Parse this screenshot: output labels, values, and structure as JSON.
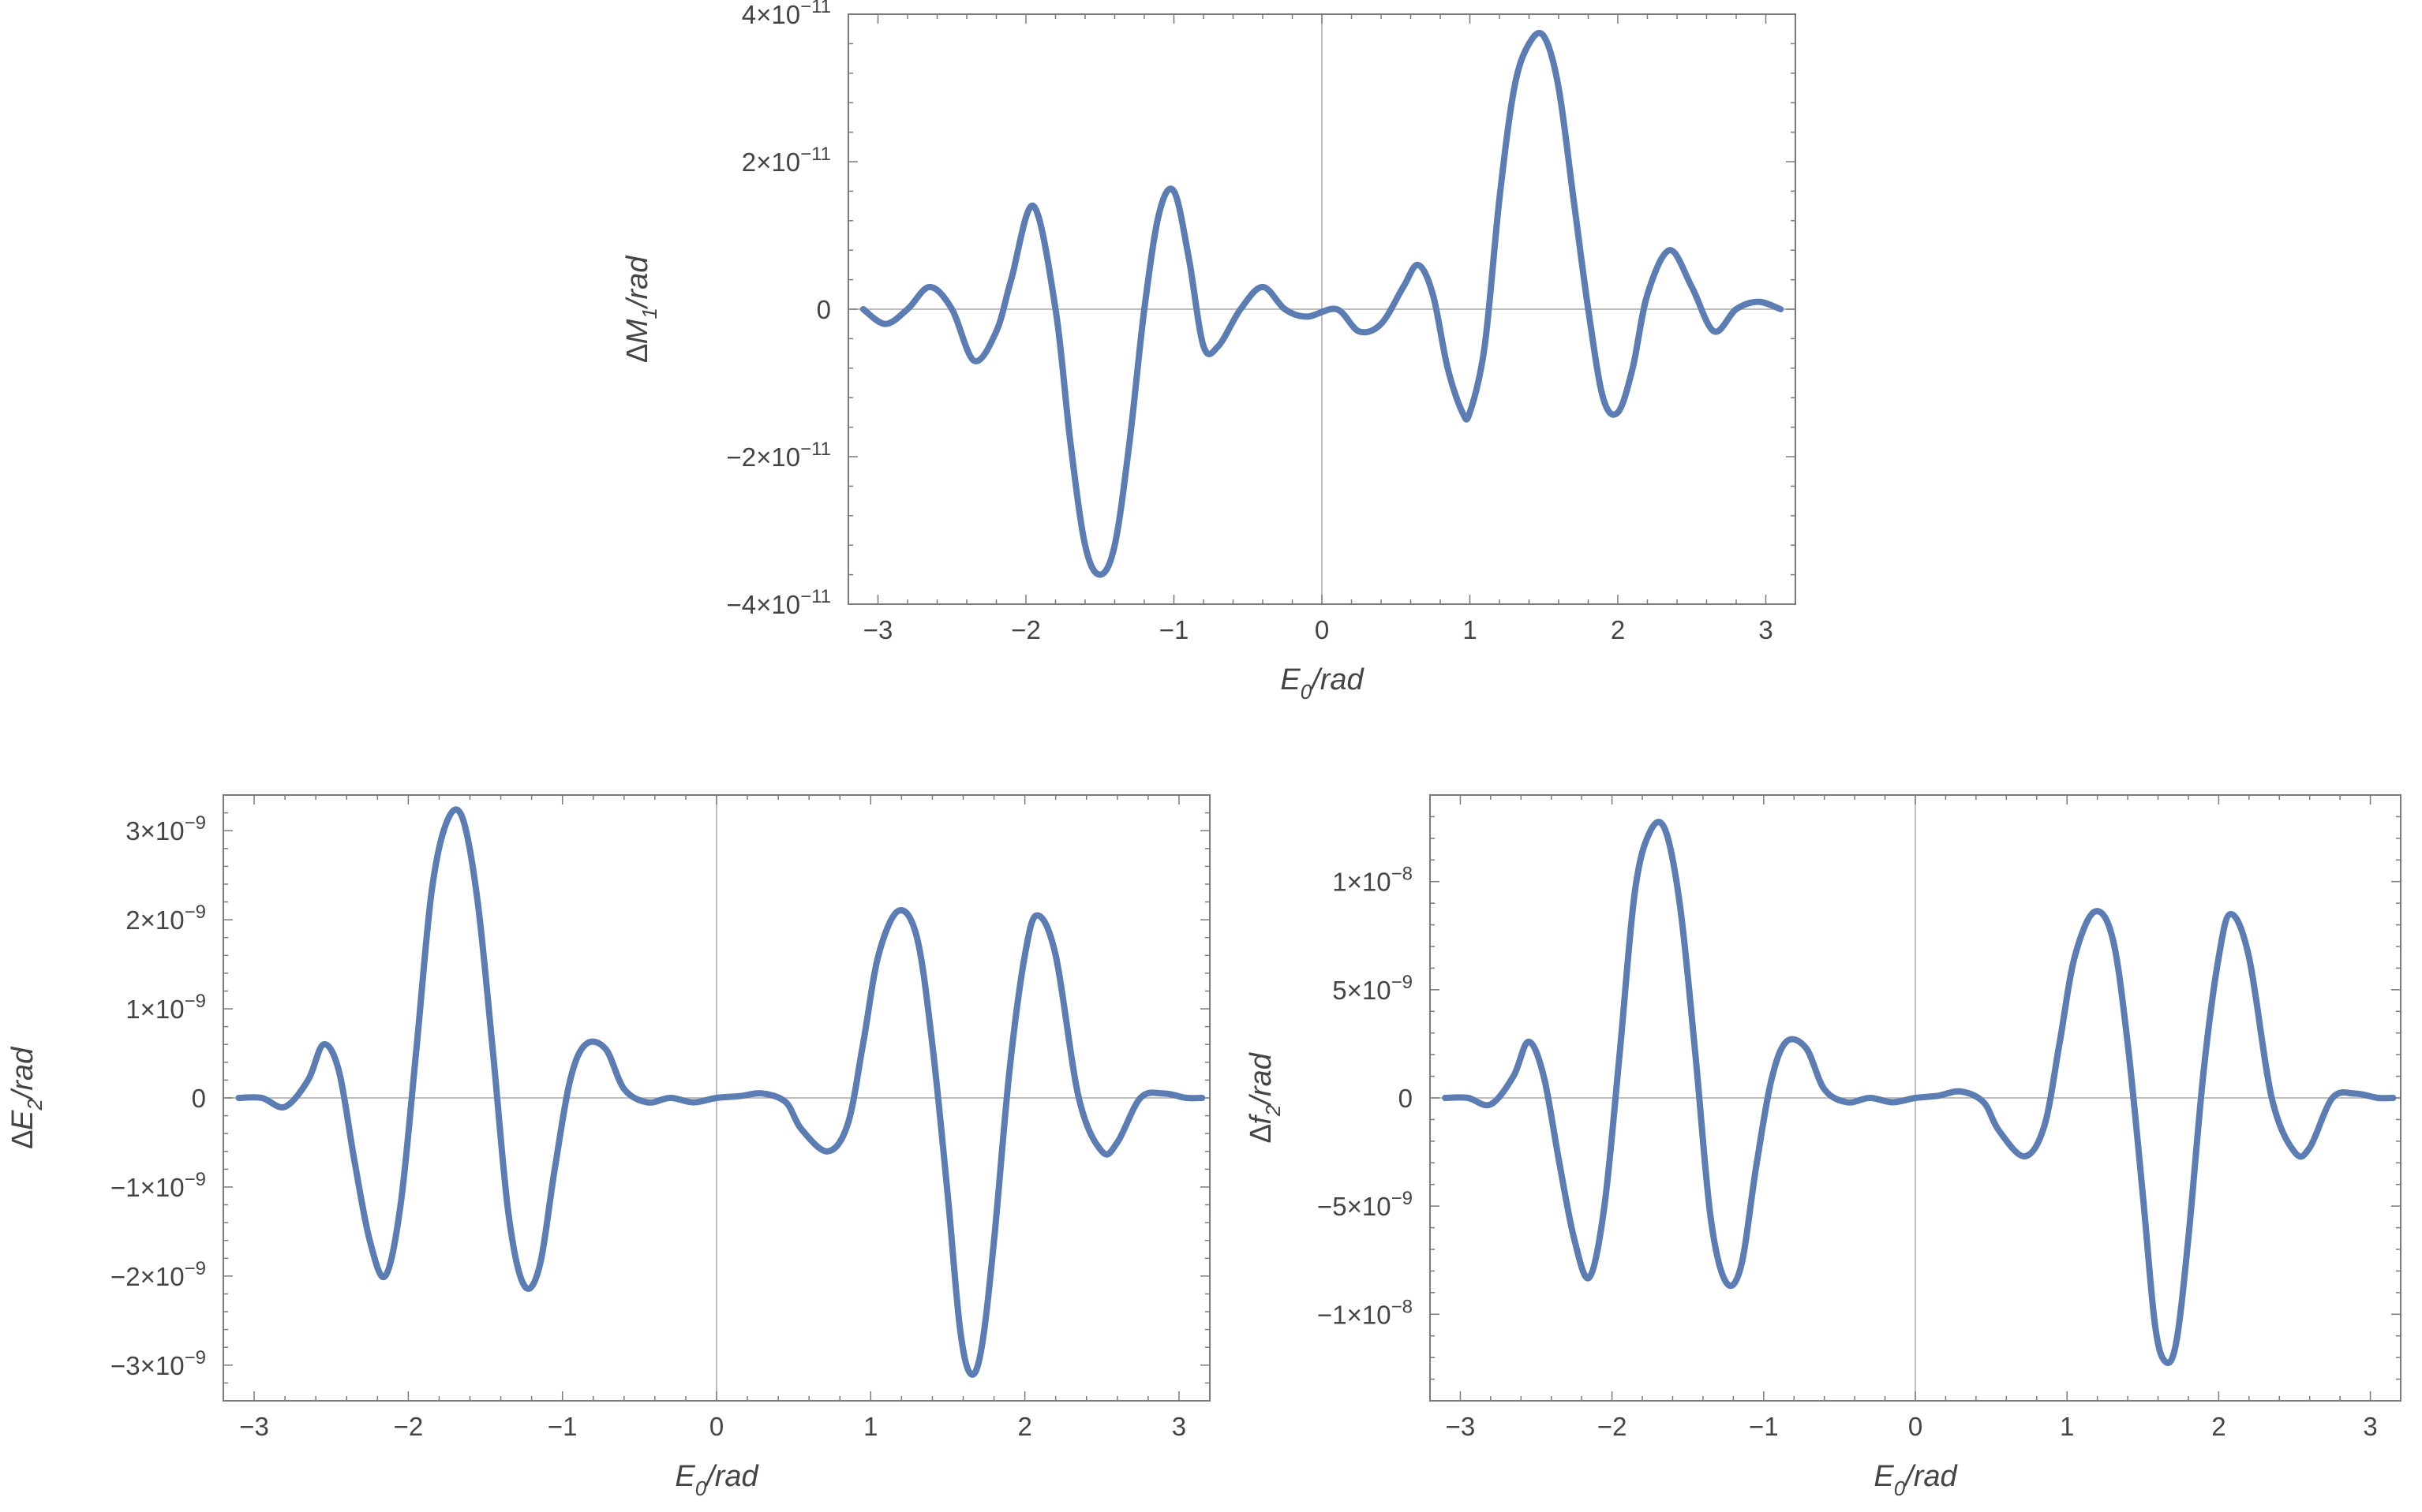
{
  "colors": {
    "series": "#5b7db3",
    "frame": "#7a7a7a",
    "zero_line": "#a8a8a8",
    "text": "#444444"
  },
  "chart_data": [
    {
      "type": "line",
      "xlabel": {
        "base": "E",
        "sub": "0",
        "suffix": "/rad"
      },
      "ylabel": {
        "prefix": "∆M",
        "sub": "1",
        "suffix": "/rad"
      },
      "xlim": [
        -3.2,
        3.2
      ],
      "ylim": [
        -4e-11,
        4e-11
      ],
      "grid": false,
      "x_ticks": [
        -3,
        -2,
        -1,
        0,
        1,
        2,
        3
      ],
      "x_tick_labels": [
        "−3",
        "−2",
        "−1",
        "0",
        "1",
        "2",
        "3"
      ],
      "y_ticks": [
        4e-11,
        2e-11,
        0,
        -2e-11,
        -4e-11
      ],
      "y_tick_labels": [
        {
          "coef": "4×10",
          "exp": "−11"
        },
        {
          "coef": "2×10",
          "exp": "−11"
        },
        {
          "coef": "0",
          "exp": ""
        },
        {
          "coef": "−2×10",
          "exp": "−11"
        },
        {
          "coef": "−4×10",
          "exp": "−11"
        }
      ],
      "x": [
        -3.1,
        -2.95,
        -2.8,
        -2.65,
        -2.5,
        -2.35,
        -2.2,
        -2.1,
        -1.95,
        -1.8,
        -1.7,
        -1.6,
        -1.5,
        -1.4,
        -1.3,
        -1.2,
        -1.1,
        -1.0,
        -0.9,
        -0.8,
        -0.7,
        -0.55,
        -0.4,
        -0.25,
        -0.1,
        0.1,
        0.25,
        0.4,
        0.55,
        0.65,
        0.75,
        0.85,
        0.95,
        1.0,
        1.1,
        1.2,
        1.3,
        1.4,
        1.5,
        1.6,
        1.7,
        1.8,
        1.9,
        2.0,
        2.1,
        2.2,
        2.35,
        2.5,
        2.65,
        2.8,
        2.95,
        3.1
      ],
      "y": [
        0,
        -2e-12,
        0,
        3e-12,
        0,
        -7e-12,
        -3e-12,
        4e-12,
        1.4e-11,
        0,
        -1.8e-11,
        -3.2e-11,
        -3.6e-11,
        -3.2e-11,
        -1.8e-11,
        0,
        1.3e-11,
        1.6e-11,
        7e-12,
        -5e-12,
        -5e-12,
        0,
        3e-12,
        0,
        -1e-12,
        0,
        -3e-12,
        -2e-12,
        3e-12,
        6e-12,
        2e-12,
        -8e-12,
        -1.4e-11,
        -1.4e-11,
        -5e-12,
        1.5e-11,
        3e-11,
        3.6e-11,
        3.7e-11,
        3e-11,
        1.5e-11,
        0,
        -1.2e-11,
        -1.4e-11,
        -8e-12,
        2e-12,
        8e-12,
        3e-12,
        -3e-12,
        0,
        1e-12,
        0
      ]
    },
    {
      "type": "line",
      "xlabel": {
        "base": "E",
        "sub": "0",
        "suffix": "/rad"
      },
      "ylabel": {
        "prefix": "∆E",
        "sub": "2",
        "suffix": "/rad"
      },
      "xlim": [
        -3.2,
        3.2
      ],
      "ylim": [
        -3.4e-09,
        3.4e-09
      ],
      "grid": false,
      "x_ticks": [
        -3,
        -2,
        -1,
        0,
        1,
        2,
        3
      ],
      "x_tick_labels": [
        "−3",
        "−2",
        "−1",
        "0",
        "1",
        "2",
        "3"
      ],
      "y_ticks": [
        3e-09,
        2e-09,
        1e-09,
        0,
        -1e-09,
        -2e-09,
        -3e-09
      ],
      "y_tick_labels": [
        {
          "coef": "3×10",
          "exp": "−9"
        },
        {
          "coef": "2×10",
          "exp": "−9"
        },
        {
          "coef": "1×10",
          "exp": "−9"
        },
        {
          "coef": "0",
          "exp": ""
        },
        {
          "coef": "−1×10",
          "exp": "−9"
        },
        {
          "coef": "−2×10",
          "exp": "−9"
        },
        {
          "coef": "−3×10",
          "exp": "−9"
        }
      ],
      "x": [
        -3.1,
        -2.95,
        -2.8,
        -2.65,
        -2.55,
        -2.45,
        -2.35,
        -2.25,
        -2.15,
        -2.05,
        -1.95,
        -1.85,
        -1.75,
        -1.65,
        -1.55,
        -1.45,
        -1.35,
        -1.25,
        -1.15,
        -1.05,
        -0.95,
        -0.85,
        -0.72,
        -0.6,
        -0.45,
        -0.3,
        -0.15,
        0,
        0.15,
        0.3,
        0.45,
        0.55,
        0.72,
        0.85,
        0.95,
        1.05,
        1.18,
        1.3,
        1.4,
        1.5,
        1.58,
        1.65,
        1.72,
        1.8,
        1.9,
        2.0,
        2.08,
        2.2,
        2.35,
        2.5,
        2.6,
        2.75,
        2.9,
        3.05,
        3.15
      ],
      "y": [
        0,
        0,
        -1e-10,
        2e-10,
        6e-10,
        3e-10,
        -7e-10,
        -1.6e-09,
        -2e-09,
        -1.2e-09,
        5e-10,
        2.3e-09,
        3.1e-09,
        3.15e-09,
        2.2e-09,
        5e-10,
        -1.3e-09,
        -2.1e-09,
        -1.9e-09,
        -8e-10,
        2e-10,
        6e-10,
        5.5e-10,
        1e-10,
        -5e-11,
        0,
        -5e-11,
        0,
        2e-11,
        5e-11,
        -5e-11,
        -3.5e-10,
        -6e-10,
        -3e-10,
        6e-10,
        1.6e-09,
        2.1e-09,
        1.8e-09,
        6e-10,
        -1.1e-09,
        -2.6e-09,
        -3.1e-09,
        -2.8e-09,
        -1.6e-09,
        3e-10,
        1.6e-09,
        2.05e-09,
        1.6e-09,
        0,
        -6e-10,
        -5e-10,
        0,
        5e-11,
        0,
        0
      ]
    },
    {
      "type": "line",
      "xlabel": {
        "base": "E",
        "sub": "0",
        "suffix": "/rad"
      },
      "ylabel": {
        "prefix": "∆f",
        "sub": "2",
        "suffix": "/rad"
      },
      "xlim": [
        -3.2,
        3.2
      ],
      "ylim": [
        -1.4e-08,
        1.4e-08
      ],
      "grid": false,
      "x_ticks": [
        -3,
        -2,
        -1,
        0,
        1,
        2,
        3
      ],
      "x_tick_labels": [
        "−3",
        "−2",
        "−1",
        "0",
        "1",
        "2",
        "3"
      ],
      "y_ticks": [
        1e-08,
        5e-09,
        0,
        -5e-09,
        -1e-08
      ],
      "y_tick_labels": [
        {
          "coef": "1×10",
          "exp": "−8"
        },
        {
          "coef": "5×10",
          "exp": "−9"
        },
        {
          "coef": "0",
          "exp": ""
        },
        {
          "coef": "−5×10",
          "exp": "−9"
        },
        {
          "coef": "−1×10",
          "exp": "−8"
        }
      ],
      "x": [
        -3.1,
        -2.95,
        -2.8,
        -2.65,
        -2.55,
        -2.45,
        -2.35,
        -2.25,
        -2.15,
        -2.05,
        -1.95,
        -1.85,
        -1.75,
        -1.65,
        -1.55,
        -1.45,
        -1.35,
        -1.25,
        -1.15,
        -1.05,
        -0.95,
        -0.85,
        -0.72,
        -0.6,
        -0.45,
        -0.3,
        -0.15,
        0,
        0.15,
        0.3,
        0.45,
        0.55,
        0.72,
        0.85,
        0.95,
        1.05,
        1.18,
        1.3,
        1.4,
        1.5,
        1.58,
        1.65,
        1.72,
        1.8,
        1.9,
        2.0,
        2.08,
        2.2,
        2.35,
        2.5,
        2.6,
        2.75,
        2.9,
        3.05,
        3.15
      ],
      "y": [
        0,
        0,
        -3e-10,
        1e-09,
        2.6e-09,
        1e-09,
        -2.9e-09,
        -6.5e-09,
        -8.3e-09,
        -5e-09,
        2e-09,
        9.5e-09,
        1.23e-08,
        1.24e-08,
        8.8e-09,
        2e-09,
        -5.5e-09,
        -8.5e-09,
        -7.8e-09,
        -3.2e-09,
        8e-10,
        2.6e-09,
        2.3e-09,
        4e-10,
        -2e-10,
        0,
        -2e-10,
        0,
        1e-10,
        3e-10,
        -2e-10,
        -1.5e-09,
        -2.7e-09,
        -1.3e-09,
        2.5e-09,
        6.5e-09,
        8.6e-09,
        7.4e-09,
        2.5e-09,
        -4.5e-09,
        -1.05e-08,
        -1.22e-08,
        -1.13e-08,
        -6.5e-09,
        1.2e-09,
        6.5e-09,
        8.5e-09,
        6.5e-09,
        0,
        -2.5e-09,
        -2.3e-09,
        0,
        2e-10,
        0,
        0
      ]
    }
  ]
}
